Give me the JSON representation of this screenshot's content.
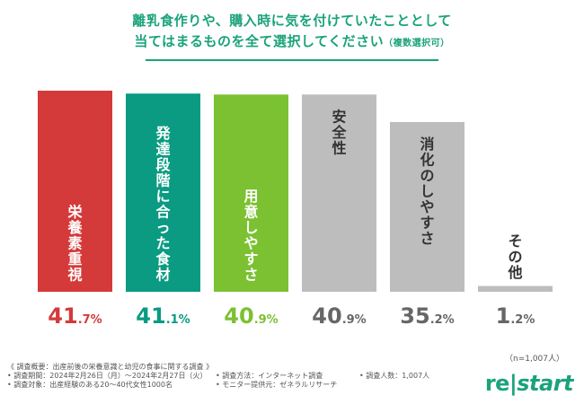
{
  "title": {
    "line1": "離乳食作りや、購入時に気を付けていたこととして",
    "line2": "当てはまるものを全て選択してください",
    "note": "（複数選択可）"
  },
  "chart_data": {
    "type": "bar",
    "categories": [
      "栄養素重視",
      "発達段階に合った食材",
      "用意しやすさ",
      "安全性",
      "消化のしやすさ",
      "その他"
    ],
    "values": [
      41.7,
      41.1,
      40.9,
      40.9,
      35.2,
      1.2
    ],
    "value_labels": {
      "integer_parts": [
        "41",
        "41",
        "40",
        "40",
        "35",
        "1"
      ],
      "decimal_parts": [
        ".7%",
        ".1%",
        ".9%",
        ".9%",
        ".2%",
        ".2%"
      ]
    },
    "bar_colors": [
      "#d43a3a",
      "#0a9b82",
      "#7bc132",
      "#bdbdbd",
      "#bdbdbd",
      "#bdbdbd"
    ],
    "label_colors": [
      "#ffffff",
      "#ffffff",
      "#ffffff",
      "#333333",
      "#333333",
      "#333333"
    ],
    "value_colors": [
      "#d43a3a",
      "#0a9b82",
      "#7bc132",
      "#666666",
      "#666666",
      "#666666"
    ],
    "ylim": [
      0,
      41.7
    ],
    "grid": false
  },
  "sample_note": "（n=1,007人）",
  "footer": {
    "heading": "《 調査概要：出産前後の栄養意識と幼児の食事に関する調査 》",
    "period": "• 調査期間：2024年2月26日（月）～2024年2月27日（火）",
    "method": "• 調査方法：インターネット調査",
    "count": "• 調査人数：1,007人",
    "target": "• 調査対象：出産経験のある20～40代女性1000名",
    "provider": "• モニター提供元：ゼネラルリサーチ"
  },
  "logo": {
    "re": "re",
    "divider": "|",
    "start": "start"
  }
}
